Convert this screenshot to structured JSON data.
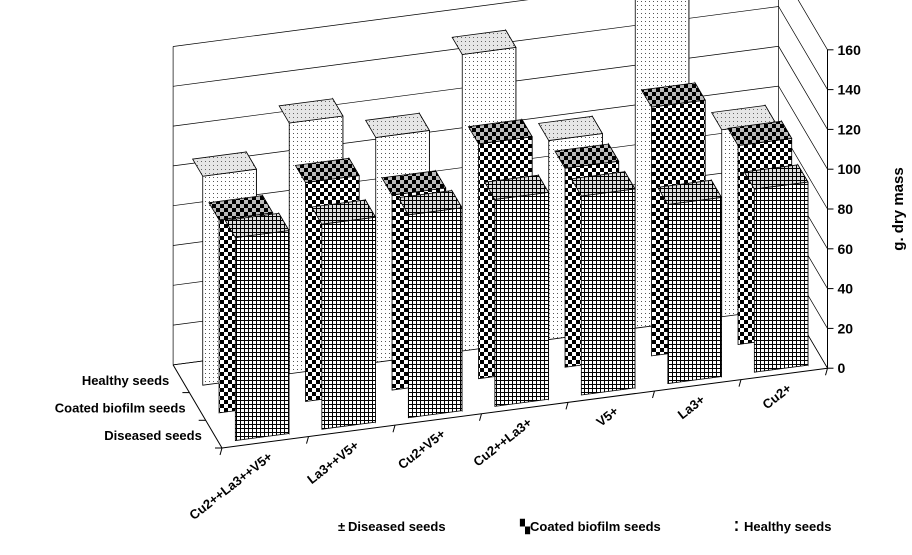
{
  "chart_data": {
    "type": "bar",
    "subtype": "3d-clustered-column",
    "categories": [
      "Cu2++La3++V5+",
      "La3++V5+",
      "Cu2+V5+",
      "Cu2++La3+",
      "V5+",
      "La3+",
      "Cu2+"
    ],
    "series": [
      {
        "name": "Healthy seeds",
        "values": [
          105,
          126,
          113,
          149,
          100,
          167,
          94
        ]
      },
      {
        "name": "Coated biofilm seeds",
        "values": [
          97,
          110,
          98,
          118,
          100,
          125,
          100
        ]
      },
      {
        "name": "Diseased seeds",
        "values": [
          102,
          103,
          102,
          104,
          100,
          90,
          92
        ]
      }
    ],
    "depth_axis_labels": [
      "Healthy seeds",
      "Coated biofilm seeds",
      "Diseased seeds"
    ],
    "ylabel": "g. dry mass",
    "ylim": [
      0,
      160
    ],
    "yticks": [
      0,
      20,
      40,
      60,
      80,
      100,
      120,
      140,
      160
    ],
    "grid": true,
    "legend_position": "bottom"
  },
  "legend": [
    {
      "glyph": "±",
      "label": "Diseased seeds"
    },
    {
      "glyph": "▚",
      "label": "Coated biofilm seeds"
    },
    {
      "glyph": "⁚",
      "label": "Healthy seeds"
    }
  ]
}
